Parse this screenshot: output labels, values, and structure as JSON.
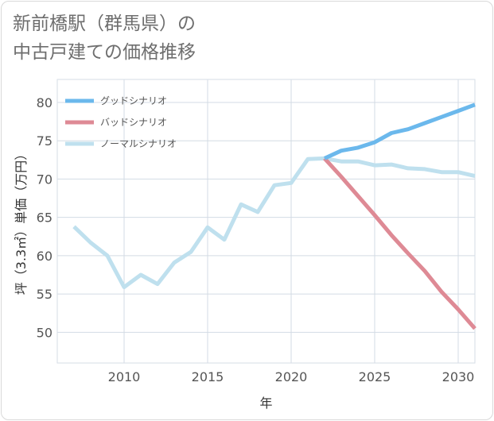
{
  "title": [
    "新前橋駅（群馬県）の",
    "中古戸建ての価格推移"
  ],
  "chart_data": {
    "type": "line",
    "title": "新前橋駅（群馬県）の中古戸建ての価格推移",
    "xlabel": "年",
    "ylabel": "坪（3.3㎡）単価（万円）",
    "xlim": [
      2006,
      2031
    ],
    "ylim": [
      46,
      83
    ],
    "xticks": [
      2010,
      2015,
      2020,
      2025,
      2030
    ],
    "yticks": [
      50,
      55,
      60,
      65,
      70,
      75,
      80
    ],
    "grid": true,
    "legend_position": "top-left",
    "series": [
      {
        "name": "グッドシナリオ",
        "color": "#6bb8ec",
        "x": [
          2022,
          2023,
          2024,
          2025,
          2026,
          2027,
          2028,
          2029,
          2030,
          2031
        ],
        "values": [
          72.7,
          73.7,
          74.1,
          74.8,
          76.0,
          76.5,
          77.3,
          78.1,
          78.9,
          79.7
        ]
      },
      {
        "name": "バッドシナリオ",
        "color": "#de8a95",
        "x": [
          2022,
          2023,
          2024,
          2025,
          2026,
          2027,
          2028,
          2029,
          2030,
          2031
        ],
        "values": [
          72.7,
          70.3,
          67.8,
          65.3,
          62.7,
          60.3,
          58.0,
          55.3,
          53.0,
          50.5
        ]
      },
      {
        "name": "ノーマルシナリオ",
        "color": "#bfe0ee",
        "x": [
          2007,
          2008,
          2009,
          2010,
          2011,
          2012,
          2013,
          2014,
          2015,
          2016,
          2017,
          2018,
          2019,
          2020,
          2021,
          2022,
          2023,
          2024,
          2025,
          2026,
          2027,
          2028,
          2029,
          2030,
          2031
        ],
        "values": [
          63.8,
          61.7,
          60.0,
          55.9,
          57.5,
          56.3,
          59.1,
          60.5,
          63.7,
          62.1,
          66.7,
          65.7,
          69.2,
          69.5,
          72.6,
          72.7,
          72.3,
          72.3,
          71.8,
          71.9,
          71.4,
          71.3,
          70.9,
          70.9,
          70.4
        ]
      }
    ]
  }
}
